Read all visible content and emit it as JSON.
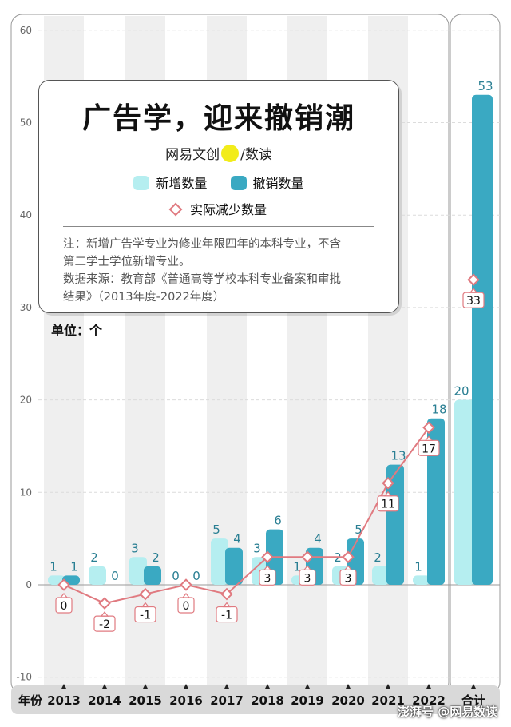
{
  "header": {
    "title": "广告学，迎来撤销潮",
    "brand_left": "网易文创",
    "brand_right": "/数读",
    "legend_add": "新增数量",
    "legend_revoke": "撤销数量",
    "legend_net": "实际减少数量",
    "note_line1": "注：新增广告学专业为修业年限四年的本科专业，不含",
    "note_line2": "第二学士学位新增专业。",
    "source_line1": "数据来源：教育部《普通高等学校本科专业备案和审批",
    "source_line2": "结果》（2013年度-2022年度）",
    "unit": "单位：个"
  },
  "footer": {
    "year_label": "年份",
    "watermark": "澎湃号 @网易数读"
  },
  "colors": {
    "add": "#b5eef0",
    "revoke": "#3aa9c2",
    "net": "#e07a80",
    "label": "#2a7f93"
  },
  "chart_data": {
    "type": "bar",
    "categories": [
      "2013",
      "2014",
      "2015",
      "2016",
      "2017",
      "2018",
      "2019",
      "2020",
      "2021",
      "2022",
      "合计"
    ],
    "series": [
      {
        "name": "新增数量",
        "values": [
          1,
          2,
          3,
          0,
          5,
          3,
          1,
          2,
          2,
          1,
          20
        ]
      },
      {
        "name": "撤销数量",
        "values": [
          1,
          0,
          2,
          0,
          4,
          6,
          4,
          5,
          13,
          18,
          53
        ]
      },
      {
        "name": "实际减少数量",
        "type": "line",
        "values": [
          0,
          -2,
          -1,
          0,
          -1,
          3,
          3,
          3,
          11,
          17,
          33
        ]
      }
    ],
    "xlabel": "年份",
    "ylabel": "单位：个",
    "ylim": [
      -10,
      60
    ],
    "yticks": [
      -10,
      0,
      10,
      20,
      30,
      40,
      50,
      60
    ],
    "grid": true
  }
}
